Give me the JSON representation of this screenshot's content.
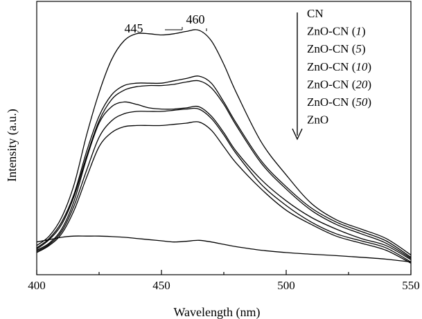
{
  "chart_data": {
    "type": "line",
    "title": "",
    "xlabel": "Wavelength (nm)",
    "ylabel": "Intensity (a.u.)",
    "xlim": [
      400,
      550
    ],
    "ylim": [
      0,
      100
    ],
    "xticks": [
      400,
      450,
      500,
      550
    ],
    "xtick_labels": [
      "400",
      "450",
      "500",
      "550"
    ],
    "grid": false,
    "legend_position": "top-right",
    "legend_arrow": "down",
    "annotations": [
      {
        "text": "445",
        "x": 445
      },
      {
        "text": "460",
        "x": 460
      }
    ],
    "x": [
      400,
      405,
      410,
      415,
      420,
      425,
      430,
      435,
      440,
      445,
      450,
      455,
      460,
      465,
      470,
      475,
      480,
      490,
      500,
      510,
      520,
      530,
      540,
      550
    ],
    "series": [
      {
        "name": "CN",
        "values": [
          8,
          12,
          20,
          34,
          55,
          73,
          87,
          95,
          98,
          98,
          97.5,
          98,
          99,
          99.5,
          95,
          85,
          73,
          52,
          38,
          26,
          19,
          15,
          11,
          4
        ]
      },
      {
        "name": "ZnO-CN (1)",
        "values": [
          7,
          11,
          18,
          30,
          48,
          63,
          72,
          76,
          77,
          77,
          77,
          78,
          79,
          80,
          77,
          69,
          60,
          44,
          33,
          24,
          18,
          14,
          10,
          3
        ]
      },
      {
        "name": "ZnO-CN (5)",
        "values": [
          6.5,
          10.5,
          17,
          29,
          46,
          61,
          70,
          74,
          75.5,
          76,
          76,
          76.5,
          77.5,
          78,
          75,
          68,
          59,
          43,
          32,
          23,
          17,
          13,
          9,
          2.5
        ]
      },
      {
        "name": "ZnO-CN (10)",
        "values": [
          6,
          9,
          15,
          27,
          45,
          60,
          67,
          69,
          68,
          66.5,
          66,
          66,
          66.5,
          67,
          63,
          56,
          48,
          36,
          27,
          20,
          15,
          11,
          8,
          2
        ]
      },
      {
        "name": "ZnO-CN (20)",
        "values": [
          5.5,
          8.5,
          14,
          25,
          40,
          54,
          61,
          64,
          65,
          65,
          65,
          65.5,
          66,
          66,
          62,
          55,
          47,
          34,
          25,
          18,
          13,
          10,
          7,
          1
        ]
      },
      {
        "name": "ZnO-CN (50)",
        "values": [
          5,
          8,
          13,
          23,
          37,
          50,
          56,
          58.5,
          59,
          59,
          59,
          59.5,
          60,
          60.5,
          57,
          50,
          43,
          32,
          23,
          17,
          12,
          9,
          6,
          0.5
        ]
      },
      {
        "name": "ZnO",
        "values": [
          9.5,
          10.5,
          11.5,
          12,
          12,
          12,
          11.8,
          11.5,
          11,
          10.5,
          10,
          9.5,
          9.8,
          10.2,
          9.5,
          8.5,
          7.5,
          6,
          5,
          4.3,
          3.7,
          3,
          2.2,
          1
        ]
      }
    ]
  },
  "legend": {
    "items": [
      {
        "prefix": "CN",
        "num": "",
        "suffix": ""
      },
      {
        "prefix": "ZnO-CN (",
        "num": "1",
        "suffix": ")"
      },
      {
        "prefix": "ZnO-CN (",
        "num": "5",
        "suffix": ")"
      },
      {
        "prefix": "ZnO-CN (",
        "num": "10",
        "suffix": ")"
      },
      {
        "prefix": "ZnO-CN (",
        "num": "20",
        "suffix": ")"
      },
      {
        "prefix": "ZnO-CN (",
        "num": "50",
        "suffix": ")"
      },
      {
        "prefix": "ZnO",
        "num": "",
        "suffix": ""
      }
    ]
  }
}
